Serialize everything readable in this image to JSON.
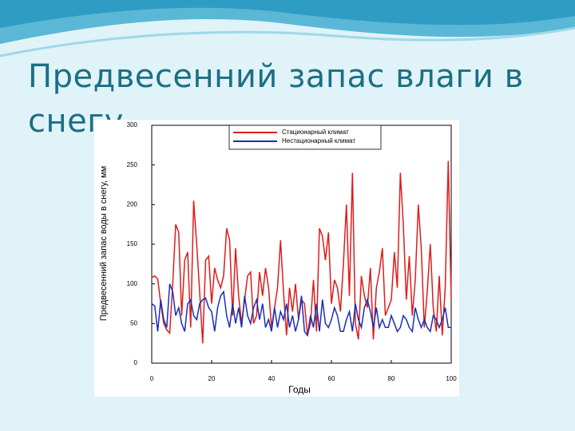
{
  "slide_title": "Предвесенний запас влаги в снегу",
  "chart_data": {
    "type": "line",
    "y_label": "Предвесенний запас воды в снегу, мм",
    "x_label": "Годы",
    "x": [
      0,
      1,
      2,
      3,
      4,
      5,
      6,
      7,
      8,
      9,
      10,
      11,
      12,
      13,
      14,
      15,
      16,
      17,
      18,
      19,
      20,
      21,
      22,
      23,
      24,
      25,
      26,
      27,
      28,
      29,
      30,
      31,
      32,
      33,
      34,
      35,
      36,
      37,
      38,
      39,
      40,
      41,
      42,
      43,
      44,
      45,
      46,
      47,
      48,
      49,
      50,
      51,
      52,
      53,
      54,
      55,
      56,
      57,
      58,
      59,
      60,
      61,
      62,
      63,
      64,
      65,
      66,
      67,
      68,
      69,
      70,
      71,
      72,
      73,
      74,
      75,
      76,
      77,
      78,
      79,
      80,
      81,
      82,
      83,
      84,
      85,
      86,
      87,
      88,
      89,
      90,
      91,
      92,
      93,
      94,
      95,
      96,
      97,
      98,
      99,
      100
    ],
    "series": [
      {
        "name": "Стационарный климат",
        "color": "#e01b1b",
        "values": [
          108,
          110,
          106,
          75,
          50,
          42,
          38,
          100,
          175,
          165,
          60,
          130,
          140,
          45,
          205,
          150,
          90,
          25,
          130,
          135,
          75,
          120,
          105,
          95,
          110,
          170,
          155,
          60,
          145,
          85,
          50,
          80,
          110,
          115,
          50,
          60,
          115,
          85,
          120,
          95,
          45,
          70,
          95,
          155,
          90,
          35,
          95,
          65,
          100,
          55,
          80,
          75,
          35,
          50,
          105,
          40,
          170,
          160,
          130,
          165,
          75,
          105,
          95,
          65,
          125,
          200,
          85,
          240,
          50,
          30,
          110,
          85,
          70,
          120,
          30,
          95,
          115,
          145,
          60,
          70,
          80,
          140,
          95,
          240,
          175,
          80,
          135,
          60,
          105,
          200,
          145,
          45,
          90,
          150,
          70,
          40,
          110,
          35,
          95,
          255,
          80
        ]
      },
      {
        "name": "Нестационарный климат",
        "color": "#1a2fb5",
        "values": [
          75,
          72,
          40,
          80,
          55,
          45,
          100,
          90,
          60,
          70,
          50,
          40,
          75,
          80,
          60,
          55,
          75,
          80,
          82,
          70,
          65,
          40,
          70,
          85,
          90,
          60,
          45,
          75,
          50,
          70,
          45,
          85,
          60,
          50,
          70,
          80,
          55,
          75,
          45,
          55,
          40,
          70,
          45,
          65,
          55,
          75,
          45,
          60,
          40,
          55,
          85,
          40,
          35,
          60,
          45,
          75,
          40,
          80,
          50,
          45,
          55,
          70,
          60,
          40,
          40,
          55,
          65,
          40,
          75,
          55,
          45,
          70,
          80,
          65,
          45,
          70,
          45,
          55,
          45,
          45,
          60,
          50,
          40,
          45,
          60,
          55,
          45,
          40,
          70,
          55,
          45,
          55,
          45,
          40,
          60,
          55,
          45,
          55,
          70,
          45,
          45
        ]
      }
    ],
    "xlim": [
      0,
      100
    ],
    "xticks": [
      0,
      20,
      40,
      60,
      80,
      100
    ],
    "ylim": [
      0,
      300
    ],
    "yticks": [
      0,
      50,
      100,
      150,
      200,
      250,
      300
    ],
    "legend": "upper right"
  }
}
